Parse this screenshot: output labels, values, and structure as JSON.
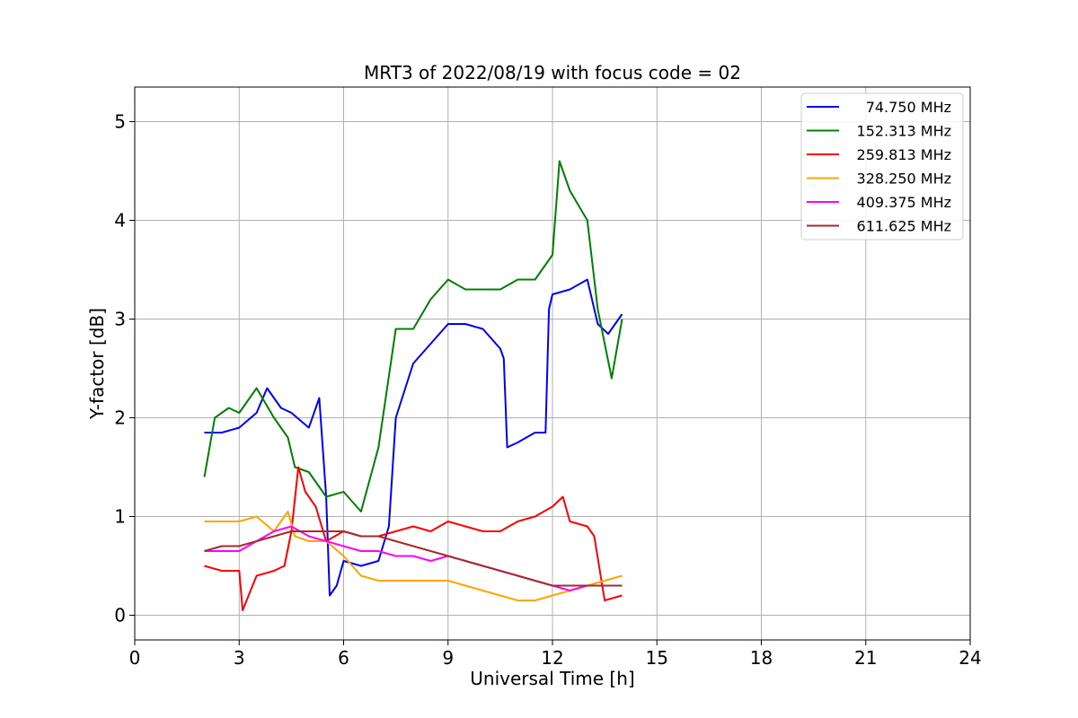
{
  "chart_data": {
    "type": "line",
    "title": "MRT3 of 2022/08/19 with focus code = 02",
    "xlabel": "Universal Time [h]",
    "ylabel": "Y-factor [dB]",
    "xlim": [
      0,
      24
    ],
    "ylim": [
      -0.25,
      5.35
    ],
    "xticks": [
      0,
      3,
      6,
      9,
      12,
      15,
      18,
      21,
      24
    ],
    "yticks": [
      0,
      1,
      2,
      3,
      4,
      5
    ],
    "grid": true,
    "legend_position": "top-right",
    "series": [
      {
        "name": "74.750 MHz",
        "color": "#0000ff",
        "x": [
          2.0,
          2.5,
          3.0,
          3.5,
          3.8,
          4.2,
          4.5,
          5.0,
          5.3,
          5.5,
          5.6,
          5.8,
          6.0,
          6.5,
          7.0,
          7.3,
          7.5,
          8.0,
          8.5,
          9.0,
          9.5,
          10.0,
          10.5,
          10.6,
          10.7,
          11.0,
          11.5,
          11.8,
          11.9,
          12.0,
          12.5,
          13.0,
          13.3,
          13.6,
          14.0
        ],
        "y": [
          1.85,
          1.85,
          1.9,
          2.05,
          2.3,
          2.1,
          2.05,
          1.9,
          2.2,
          1.2,
          0.2,
          0.3,
          0.55,
          0.5,
          0.55,
          0.9,
          2.0,
          2.55,
          2.75,
          2.95,
          2.95,
          2.9,
          2.7,
          2.6,
          1.7,
          1.75,
          1.85,
          1.85,
          3.1,
          3.25,
          3.3,
          3.4,
          2.95,
          2.85,
          3.05
        ]
      },
      {
        "name": "152.313 MHz",
        "color": "#008000",
        "x": [
          2.0,
          2.3,
          2.7,
          3.0,
          3.5,
          4.0,
          4.4,
          4.6,
          5.0,
          5.5,
          6.0,
          6.5,
          7.0,
          7.5,
          8.0,
          8.5,
          9.0,
          9.5,
          10.0,
          10.5,
          11.0,
          11.5,
          12.0,
          12.2,
          12.5,
          13.0,
          13.3,
          13.7,
          14.0
        ],
        "y": [
          1.4,
          2.0,
          2.1,
          2.05,
          2.3,
          2.0,
          1.8,
          1.5,
          1.45,
          1.2,
          1.25,
          1.05,
          1.7,
          2.9,
          2.9,
          3.2,
          3.4,
          3.3,
          3.3,
          3.3,
          3.4,
          3.4,
          3.65,
          4.6,
          4.3,
          4.0,
          3.1,
          2.4,
          3.0
        ]
      },
      {
        "name": "259.813 MHz",
        "color": "#ff0000",
        "x": [
          2.0,
          2.5,
          3.0,
          3.1,
          3.5,
          4.0,
          4.3,
          4.5,
          4.7,
          4.9,
          5.2,
          5.5,
          6.0,
          6.5,
          7.0,
          7.5,
          8.0,
          8.5,
          9.0,
          9.5,
          10.0,
          10.5,
          11.0,
          11.5,
          12.0,
          12.3,
          12.5,
          13.0,
          13.2,
          13.5,
          14.0
        ],
        "y": [
          0.5,
          0.45,
          0.45,
          0.05,
          0.4,
          0.45,
          0.5,
          0.85,
          1.5,
          1.25,
          1.1,
          0.75,
          0.85,
          0.8,
          0.8,
          0.85,
          0.9,
          0.85,
          0.95,
          0.9,
          0.85,
          0.85,
          0.95,
          1.0,
          1.1,
          1.2,
          0.95,
          0.9,
          0.8,
          0.15,
          0.2
        ]
      },
      {
        "name": "328.250 MHz",
        "color": "#ffa500",
        "x": [
          2.0,
          2.5,
          3.0,
          3.5,
          4.0,
          4.4,
          4.6,
          5.0,
          5.5,
          6.0,
          6.5,
          7.0,
          7.5,
          8.0,
          8.5,
          9.0,
          9.5,
          10.0,
          10.5,
          11.0,
          11.5,
          12.0,
          12.5,
          13.0,
          13.5,
          14.0
        ],
        "y": [
          0.95,
          0.95,
          0.95,
          1.0,
          0.85,
          1.05,
          0.8,
          0.75,
          0.75,
          0.6,
          0.4,
          0.35,
          0.35,
          0.35,
          0.35,
          0.35,
          0.3,
          0.25,
          0.2,
          0.15,
          0.15,
          0.2,
          0.25,
          0.3,
          0.35,
          0.4
        ]
      },
      {
        "name": "409.375 MHz",
        "color": "#ff00ff",
        "x": [
          2.0,
          2.5,
          3.0,
          3.5,
          4.0,
          4.5,
          5.0,
          5.5,
          6.0,
          6.5,
          7.0,
          7.5,
          8.0,
          8.5,
          9.0,
          9.5,
          10.0,
          10.5,
          11.0,
          11.5,
          12.0,
          12.5,
          13.0,
          13.5,
          14.0
        ],
        "y": [
          0.65,
          0.65,
          0.65,
          0.75,
          0.85,
          0.9,
          0.8,
          0.75,
          0.7,
          0.65,
          0.65,
          0.6,
          0.6,
          0.55,
          0.6,
          0.55,
          0.5,
          0.45,
          0.4,
          0.35,
          0.3,
          0.25,
          0.3,
          0.3,
          0.3
        ]
      },
      {
        "name": "611.625 MHz",
        "color": "#a52a2a",
        "x": [
          2.0,
          2.5,
          3.0,
          3.5,
          4.0,
          4.5,
          5.0,
          5.5,
          6.0,
          6.5,
          7.0,
          7.5,
          8.0,
          8.5,
          9.0,
          9.5,
          10.0,
          10.5,
          11.0,
          11.5,
          12.0,
          12.5,
          13.0,
          13.5,
          14.0
        ],
        "y": [
          0.65,
          0.7,
          0.7,
          0.75,
          0.8,
          0.85,
          0.85,
          0.85,
          0.85,
          0.8,
          0.8,
          0.75,
          0.7,
          0.65,
          0.6,
          0.55,
          0.5,
          0.45,
          0.4,
          0.35,
          0.3,
          0.3,
          0.3,
          0.3,
          0.3
        ]
      }
    ]
  }
}
